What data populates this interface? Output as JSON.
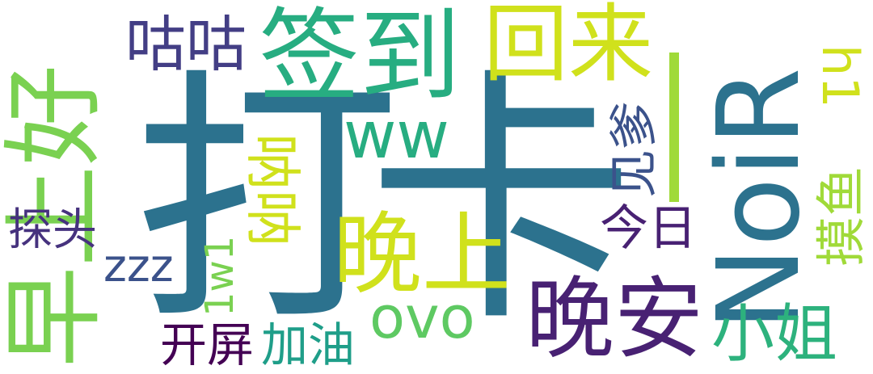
{
  "words": [
    {
      "id": "daka",
      "text": "打卡",
      "color": "#2c728e"
    },
    {
      "id": "noir",
      "text": "NoiR",
      "color": "#2c728e"
    },
    {
      "id": "zaoshanghao",
      "text": "早上好",
      "color": "#7ad151"
    },
    {
      "id": "qiandao",
      "text": "签到",
      "color": "#27ad81"
    },
    {
      "id": "huilai",
      "text": "回来",
      "color": "#d0e11c"
    },
    {
      "id": "gugu",
      "text": "咕咕",
      "color": "#433e85"
    },
    {
      "id": "wanshang",
      "text": "晚上",
      "color": "#d0e11c"
    },
    {
      "id": "wanan",
      "text": "晚安",
      "color": "#482173"
    },
    {
      "id": "ww",
      "text": "ww",
      "color": "#27ad81"
    },
    {
      "id": "bar",
      "text": "|",
      "color": "#a0da39"
    },
    {
      "id": "jiandie",
      "text": "见爹",
      "color": "#3b528b"
    },
    {
      "id": "h1",
      "text": "h1",
      "color": "#d0e11c"
    },
    {
      "id": "momo",
      "text": "摸鱼",
      "color": "#a0da39"
    },
    {
      "id": "jinri",
      "text": "今日",
      "color": "#482173"
    },
    {
      "id": "nana",
      "text": "呐呐",
      "color": "#d0e11c"
    },
    {
      "id": "tantou",
      "text": "探头",
      "color": "#46327e"
    },
    {
      "id": "zzz",
      "text": "zzz",
      "color": "#3b528b"
    },
    {
      "id": "1w1",
      "text": "1w1",
      "color": "#7ad151"
    },
    {
      "id": "ovo",
      "text": "ovo",
      "color": "#5ec962"
    },
    {
      "id": "xiaojie",
      "text": "小姐",
      "color": "#2db27d"
    },
    {
      "id": "kaiping",
      "text": "开屏",
      "color": "#440154"
    },
    {
      "id": "jiayou",
      "text": "加油",
      "color": "#1f9e89"
    }
  ]
}
